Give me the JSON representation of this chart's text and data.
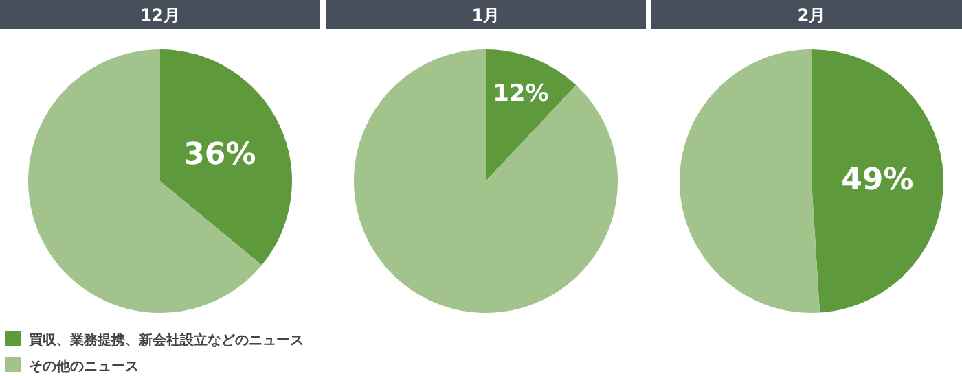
{
  "chart_data": [
    {
      "type": "pie",
      "title": "12月",
      "categories": [
        "買収、業務提携、新会社設立などのニュース",
        "その他のニュース"
      ],
      "values": [
        36,
        64
      ],
      "colors": [
        "#5e9a3b",
        "#a2c48c"
      ],
      "value_labels": [
        "36%",
        null
      ],
      "legend": "bottom left"
    },
    {
      "type": "pie",
      "title": "1月",
      "categories": [
        null,
        null
      ],
      "values": [
        12,
        88
      ],
      "colors": [
        "#5e9a3b",
        "#a2c48c"
      ],
      "value_labels": [
        "12%",
        null
      ]
    },
    {
      "type": "pie",
      "title": "2月",
      "categories": [
        null,
        null
      ],
      "values": [
        49,
        51
      ],
      "colors": [
        "#5e9a3b",
        "#a2c48c"
      ],
      "value_labels": [
        "49%",
        null
      ]
    }
  ]
}
